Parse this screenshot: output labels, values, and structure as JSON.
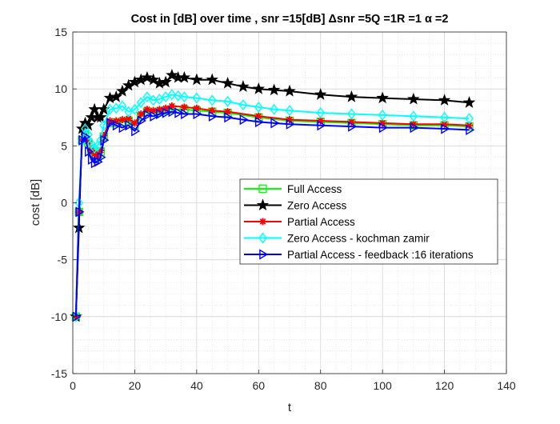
{
  "chart_data": {
    "type": "line",
    "title": "Cost in [dB] over time , snr =15[dB] Δsnr =5Q =1R =1 α =2",
    "xlabel": "t",
    "ylabel": "cost [dB]",
    "xlim": [
      0,
      140
    ],
    "ylim": [
      -15,
      15
    ],
    "xticks": [
      0,
      20,
      40,
      60,
      80,
      100,
      120,
      140
    ],
    "yticks": [
      -15,
      -10,
      -5,
      0,
      5,
      10,
      15
    ],
    "grid": true,
    "minor_grid": true,
    "legend_position": "center-right",
    "colors": {
      "full_access": "#00ff00",
      "zero_access": "#000000",
      "partial_access": "#ff0000",
      "kochman_zamir": "#00ffff",
      "feedback": "#0000ff"
    },
    "series": [
      {
        "name": "Full Access",
        "color": "#00ff00",
        "marker": "square",
        "x": [
          1,
          2,
          3,
          4,
          5,
          6,
          7,
          8,
          9,
          10,
          12,
          14,
          16,
          18,
          20,
          22,
          24,
          26,
          28,
          30,
          32,
          36,
          40,
          45,
          50,
          60,
          70,
          80,
          90,
          100,
          110,
          120,
          128
        ],
        "y": [
          -10,
          -0.8,
          5.5,
          6.0,
          5.3,
          4.5,
          4.2,
          4.0,
          4.5,
          5.8,
          7.0,
          7.0,
          7.1,
          7.2,
          6.8,
          7.6,
          8.0,
          7.9,
          8.0,
          8.1,
          8.2,
          8.2,
          8.1,
          8.0,
          7.9,
          7.5,
          7.2,
          7.1,
          7.0,
          6.9,
          6.8,
          6.8,
          6.7
        ]
      },
      {
        "name": "Zero Access",
        "color": "#000000",
        "marker": "star",
        "x": [
          1,
          2,
          3,
          4,
          5,
          6,
          7,
          8,
          9,
          10,
          12,
          14,
          16,
          18,
          20,
          22,
          24,
          26,
          28,
          30,
          32,
          34,
          36,
          40,
          45,
          50,
          55,
          60,
          65,
          70,
          80,
          90,
          100,
          110,
          120,
          128
        ],
        "y": [
          -10,
          -2.2,
          6.5,
          7.0,
          6.8,
          7.5,
          8.2,
          7.5,
          7.5,
          8.2,
          9.2,
          9.3,
          9.8,
          10.3,
          10.6,
          10.8,
          11.0,
          10.8,
          10.5,
          10.6,
          11.2,
          11.0,
          11.0,
          10.8,
          10.8,
          10.5,
          10.2,
          10.0,
          9.9,
          9.8,
          9.5,
          9.3,
          9.2,
          9.1,
          9.0,
          8.8
        ]
      },
      {
        "name": "Partial Access",
        "color": "#ff0000",
        "marker": "asterisk",
        "x": [
          1,
          2,
          3,
          4,
          5,
          6,
          7,
          8,
          9,
          10,
          12,
          14,
          16,
          18,
          20,
          22,
          24,
          26,
          28,
          30,
          32,
          36,
          40,
          45,
          50,
          60,
          70,
          80,
          90,
          100,
          110,
          120,
          128
        ],
        "y": [
          -10,
          -0.8,
          5.6,
          6.1,
          5.4,
          4.6,
          4.3,
          4.1,
          4.6,
          5.9,
          7.2,
          7.2,
          7.3,
          7.4,
          7.0,
          7.8,
          8.2,
          8.1,
          8.2,
          8.3,
          8.5,
          8.4,
          8.3,
          8.1,
          8.0,
          7.6,
          7.3,
          7.2,
          7.1,
          7.0,
          6.9,
          6.9,
          6.8
        ]
      },
      {
        "name": "Zero Access - kochman zamir",
        "color": "#00ffff",
        "marker": "diamond",
        "x": [
          1,
          2,
          3,
          4,
          5,
          6,
          7,
          8,
          9,
          10,
          12,
          14,
          16,
          18,
          20,
          22,
          24,
          26,
          28,
          30,
          32,
          34,
          36,
          40,
          45,
          50,
          55,
          60,
          65,
          70,
          80,
          90,
          100,
          110,
          120,
          128
        ],
        "y": [
          -10,
          0.0,
          5.5,
          6.5,
          6.0,
          5.2,
          4.8,
          5.0,
          5.5,
          6.8,
          8.2,
          8.3,
          8.5,
          8.0,
          8.2,
          8.8,
          9.3,
          9.0,
          9.1,
          9.3,
          9.5,
          9.4,
          9.3,
          9.2,
          9.0,
          8.9,
          8.6,
          8.4,
          8.2,
          8.1,
          7.9,
          7.8,
          7.7,
          7.6,
          7.5,
          7.4
        ]
      },
      {
        "name": "Partial Access - feedback :16 iterations",
        "color": "#0000ff",
        "marker": "triangle-right",
        "x": [
          1,
          2,
          3,
          4,
          5,
          6,
          7,
          8,
          9,
          10,
          12,
          14,
          16,
          18,
          20,
          22,
          24,
          26,
          28,
          30,
          32,
          34,
          36,
          40,
          45,
          50,
          55,
          60,
          65,
          70,
          80,
          90,
          100,
          110,
          120,
          128
        ],
        "y": [
          -10,
          -0.8,
          5.5,
          5.8,
          4.5,
          3.8,
          3.5,
          3.6,
          4.0,
          5.5,
          7.0,
          6.8,
          6.6,
          6.8,
          6.3,
          7.2,
          7.7,
          7.6,
          7.8,
          7.9,
          8.0,
          7.9,
          7.8,
          7.8,
          7.6,
          7.5,
          7.3,
          7.1,
          7.0,
          6.9,
          6.8,
          6.7,
          6.6,
          6.6,
          6.5,
          6.4
        ]
      }
    ]
  }
}
